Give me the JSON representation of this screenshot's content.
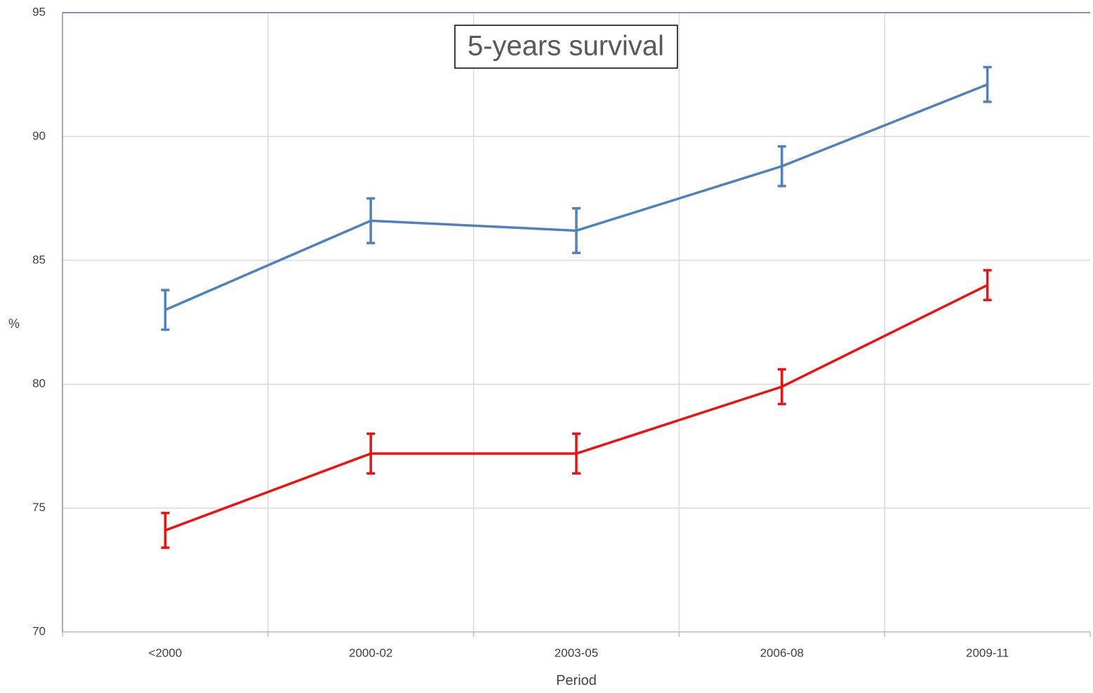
{
  "chart_data": {
    "type": "line",
    "title": "5-years survival",
    "x_label": "Period",
    "y_label": "%",
    "categories": [
      "<2000",
      "2000-02",
      "2003-05",
      "2006-08",
      "2009-11"
    ],
    "series": [
      {
        "color": "#4f81bd",
        "values": [
          83.0,
          86.6,
          86.2,
          88.8,
          92.1
        ],
        "errors": [
          0.8,
          0.9,
          0.9,
          0.8,
          0.7
        ]
      },
      {
        "color": "#ee1111",
        "values": [
          74.1,
          77.2,
          77.2,
          79.9,
          84.0
        ],
        "errors": [
          0.7,
          0.8,
          0.8,
          0.7,
          0.6
        ]
      }
    ],
    "ylim": [
      70,
      95
    ],
    "yticks": [
      70,
      75,
      80,
      85,
      90,
      95
    ],
    "grid": true
  }
}
